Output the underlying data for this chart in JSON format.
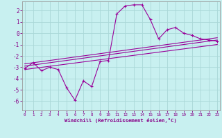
{
  "xlabel": "Windchill (Refroidissement éolien,°C)",
  "background_color": "#c8f0f0",
  "grid_color": "#aad8d8",
  "line_color": "#990099",
  "spine_color": "#777777",
  "x_ticks": [
    0,
    1,
    2,
    3,
    4,
    5,
    6,
    7,
    8,
    9,
    10,
    11,
    12,
    13,
    14,
    15,
    16,
    17,
    18,
    19,
    20,
    21,
    22,
    23
  ],
  "y_ticks": [
    -6,
    -5,
    -4,
    -3,
    -2,
    -1,
    0,
    1,
    2
  ],
  "xlim": [
    -0.3,
    23.3
  ],
  "ylim": [
    -6.8,
    2.8
  ],
  "series": {
    "main": {
      "x": [
        0,
        1,
        2,
        3,
        4,
        5,
        6,
        7,
        8,
        9,
        10,
        11,
        12,
        13,
        14,
        15,
        16,
        17,
        18,
        19,
        20,
        21,
        22,
        23
      ],
      "y": [
        -3.1,
        -2.6,
        -3.3,
        -3.0,
        -3.2,
        -4.8,
        -5.9,
        -4.2,
        -4.7,
        -2.5,
        -2.4,
        1.7,
        2.4,
        2.5,
        2.5,
        1.2,
        -0.5,
        0.3,
        0.5,
        0.0,
        -0.2,
        -0.5,
        -0.6,
        -0.7
      ]
    },
    "line1": {
      "x": [
        0,
        23
      ],
      "y": [
        -2.9,
        -0.6
      ]
    },
    "line2": {
      "x": [
        0,
        23
      ],
      "y": [
        -2.7,
        -0.4
      ]
    },
    "line3": {
      "x": [
        0,
        23
      ],
      "y": [
        -3.2,
        -1.0
      ]
    }
  }
}
